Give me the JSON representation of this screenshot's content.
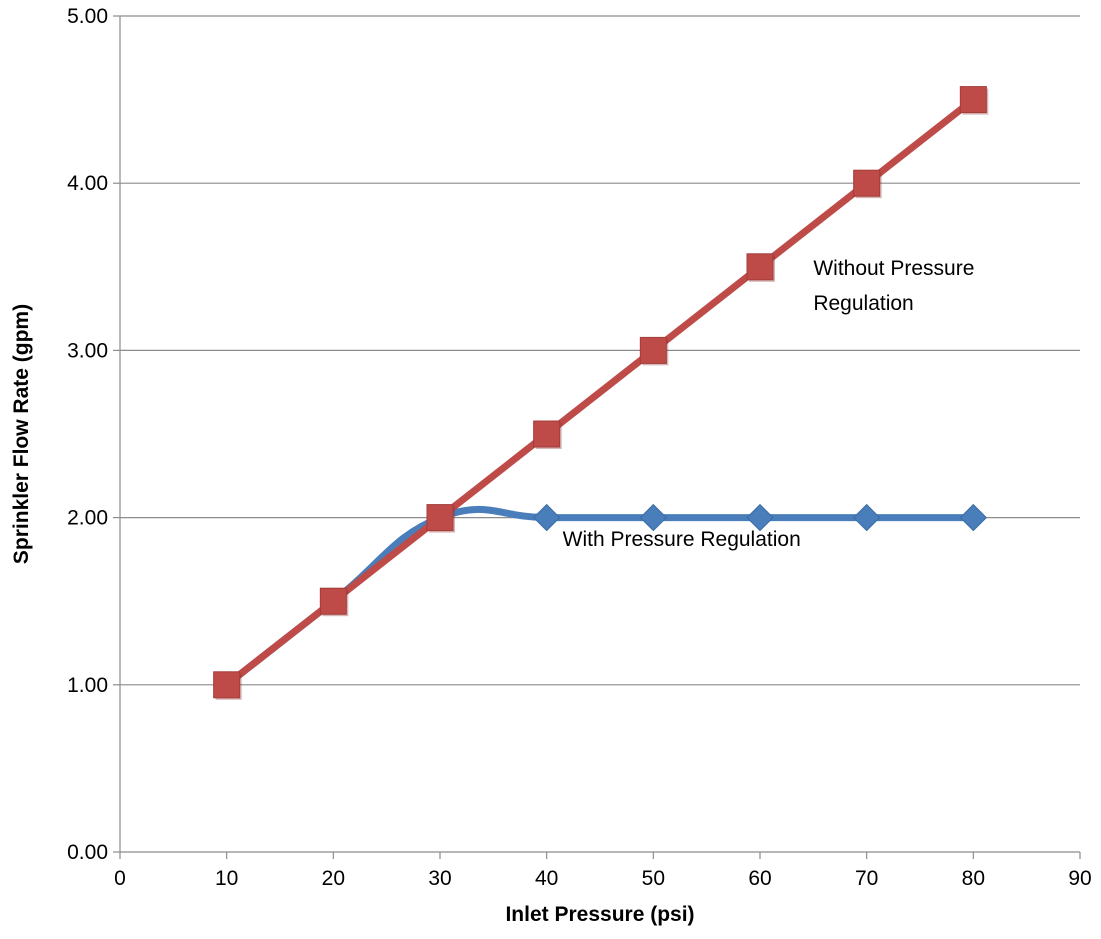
{
  "chart_data": {
    "type": "line",
    "title": "",
    "xlabel": "Inlet Pressure (psi)",
    "ylabel": "Sprinkler Flow Rate (gpm)",
    "xlim": [
      0,
      90
    ],
    "ylim": [
      0,
      5
    ],
    "x_ticks": [
      "0",
      "10",
      "20",
      "30",
      "40",
      "50",
      "60",
      "70",
      "80",
      "90"
    ],
    "y_ticks": [
      "0.00",
      "1.00",
      "2.00",
      "3.00",
      "4.00",
      "5.00"
    ],
    "grid": "horizontal",
    "legend": "none",
    "series": [
      {
        "color": "#4a7ebb",
        "marker": "diamond",
        "smooth": true,
        "x": [
          10,
          20,
          30,
          40,
          50,
          60,
          70,
          80
        ],
        "values": [
          1.0,
          1.5,
          2.0,
          2.0,
          2.0,
          2.0,
          2.0,
          2.0
        ]
      },
      {
        "color": "#be4b48",
        "marker": "square",
        "smooth": false,
        "x": [
          10,
          20,
          30,
          40,
          50,
          60,
          70,
          80
        ],
        "values": [
          1.0,
          1.5,
          2.0,
          2.5,
          3.0,
          3.5,
          4.0,
          4.5
        ]
      }
    ],
    "annotations": [
      {
        "lines": [
          "Without Pressure",
          "Regulation"
        ],
        "x": 65,
        "y": 3.45
      },
      {
        "lines": [
          "With Pressure Regulation"
        ],
        "x": 41.5,
        "y": 1.83
      }
    ]
  }
}
